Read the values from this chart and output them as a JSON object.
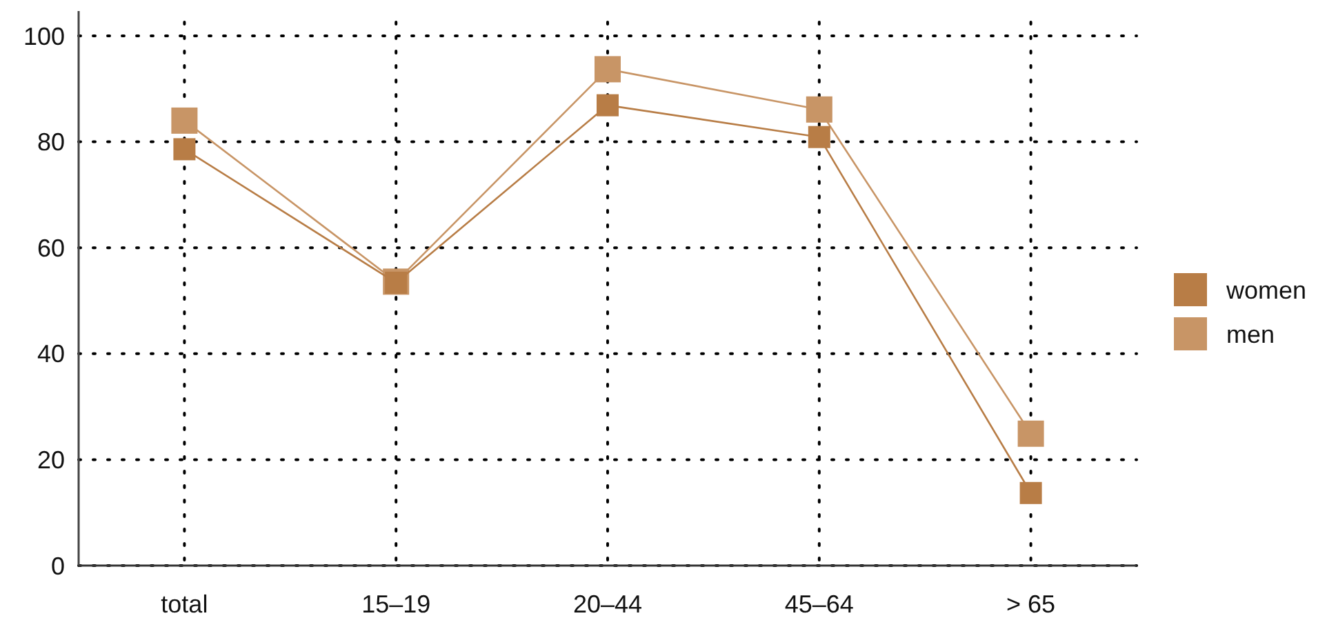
{
  "chart_data": {
    "type": "line",
    "categories": [
      "total",
      "15–19",
      "20–44",
      "45–64",
      "> 65"
    ],
    "series": [
      {
        "name": "women",
        "color": "#b87d46",
        "values": [
          78.6,
          53.4,
          86.9,
          80.9,
          13.7
        ]
      },
      {
        "name": "men",
        "color": "#c89566",
        "values": [
          84.0,
          53.6,
          93.7,
          86.1,
          24.9
        ]
      }
    ],
    "ylim": [
      0,
      100
    ],
    "yticks": [
      0,
      20,
      40,
      60,
      80,
      100
    ],
    "grid": true,
    "legend": "right",
    "marker": "square",
    "line_style": "solid"
  }
}
